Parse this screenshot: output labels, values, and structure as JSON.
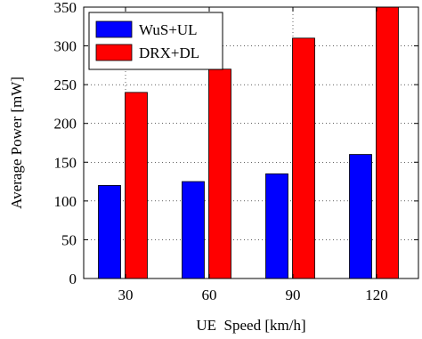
{
  "chart_data": {
    "type": "bar",
    "categories": [
      "30",
      "60",
      "90",
      "120"
    ],
    "series": [
      {
        "name": "WuS+UL",
        "values": [
          120,
          125,
          135,
          160
        ],
        "color": "#0000ff"
      },
      {
        "name": "DRX+DL",
        "values": [
          240,
          270,
          310,
          350
        ],
        "color": "#ff0000"
      }
    ],
    "title": "",
    "xlabel": "UE  Speed [km/h]",
    "ylabel": "Average Power [mW]",
    "ylim": [
      0,
      350
    ],
    "yticks": [
      0,
      50,
      100,
      150,
      200,
      250,
      300,
      350
    ],
    "grid": true,
    "legend_position": "top-left"
  }
}
